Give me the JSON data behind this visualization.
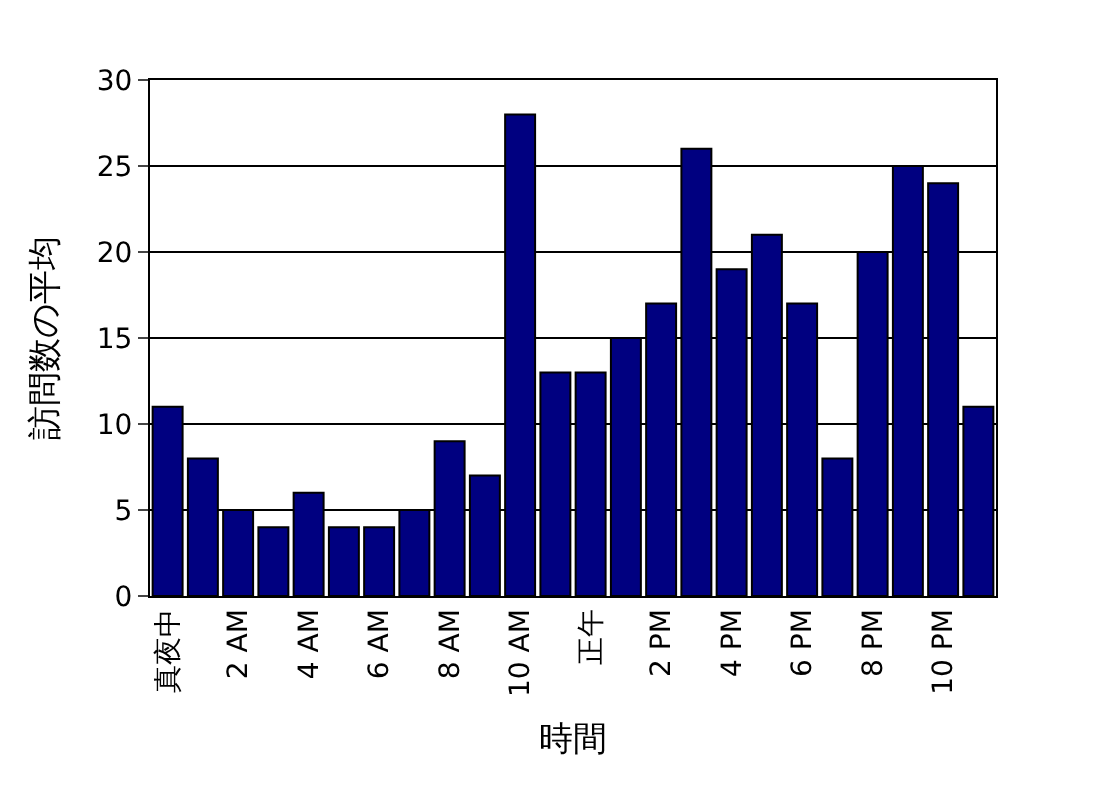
{
  "chart_data": {
    "type": "bar",
    "xlabel": "時間",
    "ylabel": "訪問数の平均",
    "categories": [
      "真夜中",
      null,
      "2 AM",
      null,
      "4 AM",
      null,
      "6 AM",
      null,
      "8 AM",
      null,
      "10 AM",
      null,
      "正午",
      null,
      "2 PM",
      null,
      "4 PM",
      null,
      "6 PM",
      null,
      "8 PM",
      null,
      "10 PM",
      null
    ],
    "series": [
      {
        "color": "#000080",
        "values": [
          11,
          8,
          5,
          4,
          6,
          4,
          4,
          5,
          9,
          7,
          28,
          13,
          13,
          15,
          17,
          26,
          19,
          21,
          17,
          8,
          20,
          25,
          24,
          11
        ]
      }
    ],
    "ylim": [
      0,
      30
    ],
    "yticks": [
      0,
      5,
      10,
      15,
      20,
      25,
      30
    ],
    "grid": "y",
    "legend": false
  }
}
